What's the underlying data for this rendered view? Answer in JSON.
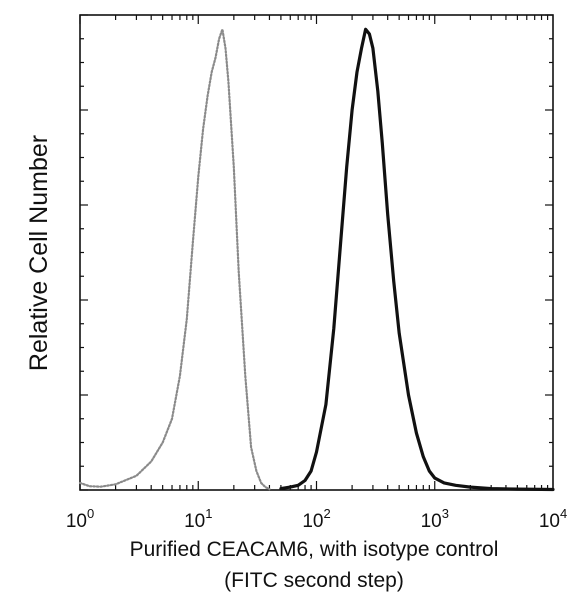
{
  "chart_data": {
    "type": "line",
    "x_scale": "log",
    "xlim": [
      1,
      10000
    ],
    "ylim": [
      0,
      100
    ],
    "grid": false,
    "legend": "none",
    "title": "",
    "ylabel": "Relative Cell Number",
    "xlabel_line1": "Purified CEACAM6, with isotype control",
    "xlabel_line2": "(FITC second step)",
    "x_tick_labels": [
      {
        "value": 1,
        "base": "10",
        "exp": "0"
      },
      {
        "value": 10,
        "base": "10",
        "exp": "1"
      },
      {
        "value": 100,
        "base": "10",
        "exp": "2"
      },
      {
        "value": 1000,
        "base": "10",
        "exp": "3"
      },
      {
        "value": 10000,
        "base": "10",
        "exp": "4"
      }
    ],
    "series": [
      {
        "style": "dotted-gray",
        "color": "#8a8a8a",
        "x": [
          1,
          1.2,
          1.5,
          2,
          3,
          4,
          5,
          6,
          7,
          8,
          9,
          10,
          11,
          12,
          13,
          14,
          15,
          16,
          17,
          18,
          20,
          22,
          25,
          28,
          31,
          34,
          37,
          40
        ],
        "y": [
          1.5,
          0.8,
          0.7,
          1.2,
          3,
          6,
          10,
          15,
          24,
          36,
          52,
          66,
          76,
          83,
          88,
          91,
          95,
          97,
          93,
          86,
          68,
          46,
          24,
          9,
          4,
          1.5,
          0.6,
          0.2
        ]
      },
      {
        "style": "solid-black",
        "color": "#111111",
        "x": [
          50,
          60,
          70,
          80,
          90,
          100,
          120,
          140,
          160,
          180,
          200,
          220,
          240,
          260,
          280,
          300,
          330,
          360,
          400,
          450,
          500,
          600,
          700,
          800,
          900,
          1000,
          1200,
          1500,
          2000,
          3000,
          5000,
          10000
        ],
        "y": [
          0.3,
          0.6,
          1,
          2,
          4,
          8,
          18,
          34,
          52,
          68,
          80,
          88,
          93,
          97,
          96,
          93,
          84,
          73,
          58,
          44,
          33,
          20,
          12,
          7,
          4,
          2.5,
          1.5,
          1,
          0.6,
          0.3,
          0.2,
          0.1
        ]
      }
    ]
  }
}
